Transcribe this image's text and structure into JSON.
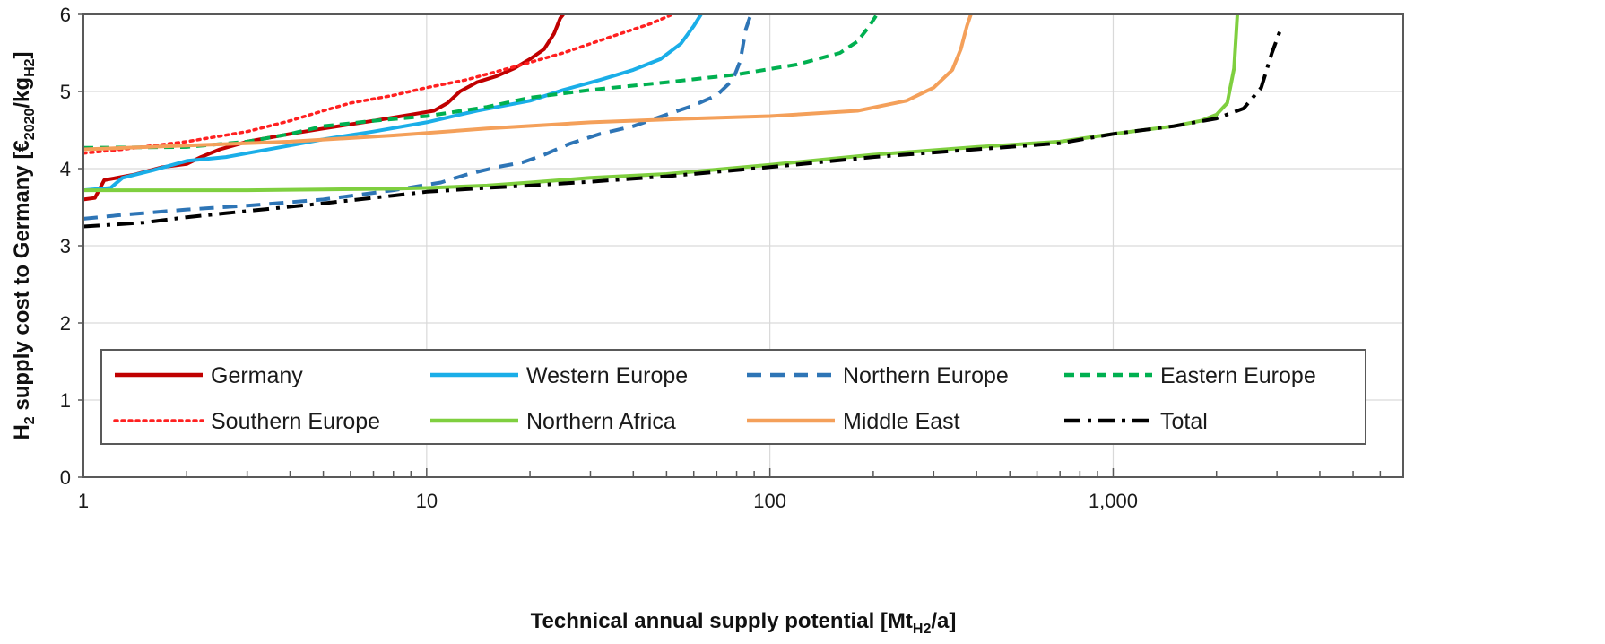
{
  "chart_data": {
    "type": "line",
    "title": "",
    "xlabel": {
      "main": "Technical annual supply potential [Mt",
      "sub": "H2",
      "tail": "/a]"
    },
    "ylabel": {
      "p1": "H",
      "p1sub": "2",
      "p2": " supply cost to Germany [€",
      "p2sub": "2020",
      "p3": "/kg",
      "p3sub": "H2",
      "p4": "]"
    },
    "x_scale": "log",
    "xlim": [
      1,
      7000
    ],
    "ylim": [
      0,
      6
    ],
    "x_ticks": [
      {
        "value": 1,
        "label": "1"
      },
      {
        "value": 10,
        "label": "10"
      },
      {
        "value": 100,
        "label": "100"
      },
      {
        "value": 1000,
        "label": "1,000"
      }
    ],
    "y_ticks": [
      {
        "value": 0,
        "label": "0"
      },
      {
        "value": 1,
        "label": "1"
      },
      {
        "value": 2,
        "label": "2"
      },
      {
        "value": 3,
        "label": "3"
      },
      {
        "value": 4,
        "label": "4"
      },
      {
        "value": 5,
        "label": "5"
      },
      {
        "value": 6,
        "label": "6"
      }
    ],
    "grid": true,
    "legend_position": "bottom-inside",
    "series": [
      {
        "name": "Germany",
        "color": "#c00000",
        "dash": "solid",
        "points": [
          [
            1.0,
            3.6
          ],
          [
            1.08,
            3.62
          ],
          [
            1.15,
            3.85
          ],
          [
            1.4,
            3.92
          ],
          [
            1.7,
            4.02
          ],
          [
            2.0,
            4.06
          ],
          [
            2.2,
            4.15
          ],
          [
            2.5,
            4.25
          ],
          [
            3.0,
            4.35
          ],
          [
            4.0,
            4.45
          ],
          [
            5.0,
            4.52
          ],
          [
            7.0,
            4.62
          ],
          [
            9.0,
            4.7
          ],
          [
            10.5,
            4.75
          ],
          [
            11.5,
            4.85
          ],
          [
            12.5,
            5.0
          ],
          [
            14.0,
            5.12
          ],
          [
            16.0,
            5.2
          ],
          [
            18.0,
            5.3
          ],
          [
            20.0,
            5.42
          ],
          [
            22.0,
            5.55
          ],
          [
            23.5,
            5.75
          ],
          [
            24.5,
            5.95
          ],
          [
            25.0,
            6.0
          ]
        ]
      },
      {
        "name": "Western Europe",
        "color": "#1aaee8",
        "dash": "solid",
        "points": [
          [
            1.0,
            3.72
          ],
          [
            1.2,
            3.75
          ],
          [
            1.3,
            3.88
          ],
          [
            1.6,
            3.98
          ],
          [
            2.0,
            4.1
          ],
          [
            2.6,
            4.15
          ],
          [
            3.0,
            4.2
          ],
          [
            4.0,
            4.3
          ],
          [
            5.0,
            4.38
          ],
          [
            7.0,
            4.48
          ],
          [
            10.0,
            4.6
          ],
          [
            14.0,
            4.75
          ],
          [
            20.0,
            4.88
          ],
          [
            25.0,
            5.02
          ],
          [
            32.0,
            5.15
          ],
          [
            40.0,
            5.28
          ],
          [
            48.0,
            5.42
          ],
          [
            55.0,
            5.62
          ],
          [
            60.0,
            5.85
          ],
          [
            63.0,
            6.0
          ]
        ]
      },
      {
        "name": "Northern Europe",
        "color": "#2e75b6",
        "dash": "long",
        "points": [
          [
            1.0,
            3.35
          ],
          [
            1.3,
            3.4
          ],
          [
            2.0,
            3.47
          ],
          [
            3.0,
            3.52
          ],
          [
            5.0,
            3.6
          ],
          [
            8.0,
            3.72
          ],
          [
            11.0,
            3.82
          ],
          [
            13.0,
            3.92
          ],
          [
            16.0,
            4.02
          ],
          [
            19.0,
            4.08
          ],
          [
            22.0,
            4.18
          ],
          [
            26.0,
            4.32
          ],
          [
            32.0,
            4.45
          ],
          [
            40.0,
            4.55
          ],
          [
            50.0,
            4.7
          ],
          [
            60.0,
            4.82
          ],
          [
            70.0,
            4.95
          ],
          [
            78.0,
            5.15
          ],
          [
            82.0,
            5.4
          ],
          [
            85.0,
            5.8
          ],
          [
            88.0,
            6.0
          ]
        ]
      },
      {
        "name": "Eastern Europe",
        "color": "#00b050",
        "dash": "medium",
        "points": [
          [
            1.0,
            4.27
          ],
          [
            2.0,
            4.28
          ],
          [
            3.0,
            4.35
          ],
          [
            4.0,
            4.45
          ],
          [
            5.0,
            4.55
          ],
          [
            7.0,
            4.62
          ],
          [
            10.0,
            4.68
          ],
          [
            15.0,
            4.8
          ],
          [
            20.0,
            4.92
          ],
          [
            30.0,
            5.02
          ],
          [
            50.0,
            5.12
          ],
          [
            80.0,
            5.22
          ],
          [
            120.0,
            5.35
          ],
          [
            160.0,
            5.5
          ],
          [
            180.0,
            5.65
          ],
          [
            195.0,
            5.85
          ],
          [
            205.0,
            6.0
          ]
        ]
      },
      {
        "name": "Southern Europe",
        "color": "#ff2020",
        "dash": "dotted",
        "points": [
          [
            1.0,
            4.2
          ],
          [
            1.3,
            4.25
          ],
          [
            2.0,
            4.35
          ],
          [
            3.0,
            4.48
          ],
          [
            4.0,
            4.62
          ],
          [
            5.0,
            4.75
          ],
          [
            6.0,
            4.85
          ],
          [
            8.0,
            4.95
          ],
          [
            10.0,
            5.05
          ],
          [
            13.0,
            5.15
          ],
          [
            18.0,
            5.32
          ],
          [
            25.0,
            5.5
          ],
          [
            35.0,
            5.72
          ],
          [
            45.0,
            5.88
          ],
          [
            52.0,
            6.0
          ]
        ]
      },
      {
        "name": "Northern Africa",
        "color": "#7fcf3f",
        "dash": "solid",
        "points": [
          [
            1.0,
            3.72
          ],
          [
            3.0,
            3.72
          ],
          [
            5.0,
            3.73
          ],
          [
            8.0,
            3.74
          ],
          [
            10.0,
            3.75
          ],
          [
            15.0,
            3.78
          ],
          [
            20.0,
            3.82
          ],
          [
            30.0,
            3.88
          ],
          [
            50.0,
            3.93
          ],
          [
            100.0,
            4.05
          ],
          [
            200.0,
            4.18
          ],
          [
            400.0,
            4.28
          ],
          [
            700.0,
            4.35
          ],
          [
            1000.0,
            4.45
          ],
          [
            1500.0,
            4.55
          ],
          [
            1800.0,
            4.62
          ],
          [
            2000.0,
            4.7
          ],
          [
            2150.0,
            4.85
          ],
          [
            2250.0,
            5.3
          ],
          [
            2300.0,
            6.0
          ]
        ]
      },
      {
        "name": "Middle East",
        "color": "#f4a05a",
        "dash": "solid",
        "points": [
          [
            1.0,
            4.25
          ],
          [
            2.0,
            4.3
          ],
          [
            4.0,
            4.35
          ],
          [
            8.0,
            4.43
          ],
          [
            15.0,
            4.52
          ],
          [
            30.0,
            4.6
          ],
          [
            60.0,
            4.65
          ],
          [
            100.0,
            4.68
          ],
          [
            180.0,
            4.75
          ],
          [
            250.0,
            4.88
          ],
          [
            300.0,
            5.05
          ],
          [
            340.0,
            5.28
          ],
          [
            360.0,
            5.55
          ],
          [
            375.0,
            5.85
          ],
          [
            385.0,
            6.0
          ]
        ]
      },
      {
        "name": "Total",
        "color": "#000000",
        "dash": "dashdot",
        "points": [
          [
            1.0,
            3.25
          ],
          [
            1.5,
            3.3
          ],
          [
            2.0,
            3.37
          ],
          [
            3.0,
            3.45
          ],
          [
            5.0,
            3.55
          ],
          [
            8.0,
            3.65
          ],
          [
            10.0,
            3.7
          ],
          [
            15.0,
            3.75
          ],
          [
            20.0,
            3.78
          ],
          [
            30.0,
            3.83
          ],
          [
            50.0,
            3.9
          ],
          [
            100.0,
            4.02
          ],
          [
            200.0,
            4.15
          ],
          [
            400.0,
            4.25
          ],
          [
            700.0,
            4.33
          ],
          [
            1000.0,
            4.45
          ],
          [
            1500.0,
            4.55
          ],
          [
            2000.0,
            4.65
          ],
          [
            2400.0,
            4.78
          ],
          [
            2700.0,
            5.05
          ],
          [
            2900.0,
            5.5
          ],
          [
            3100.0,
            5.85
          ]
        ]
      }
    ]
  }
}
